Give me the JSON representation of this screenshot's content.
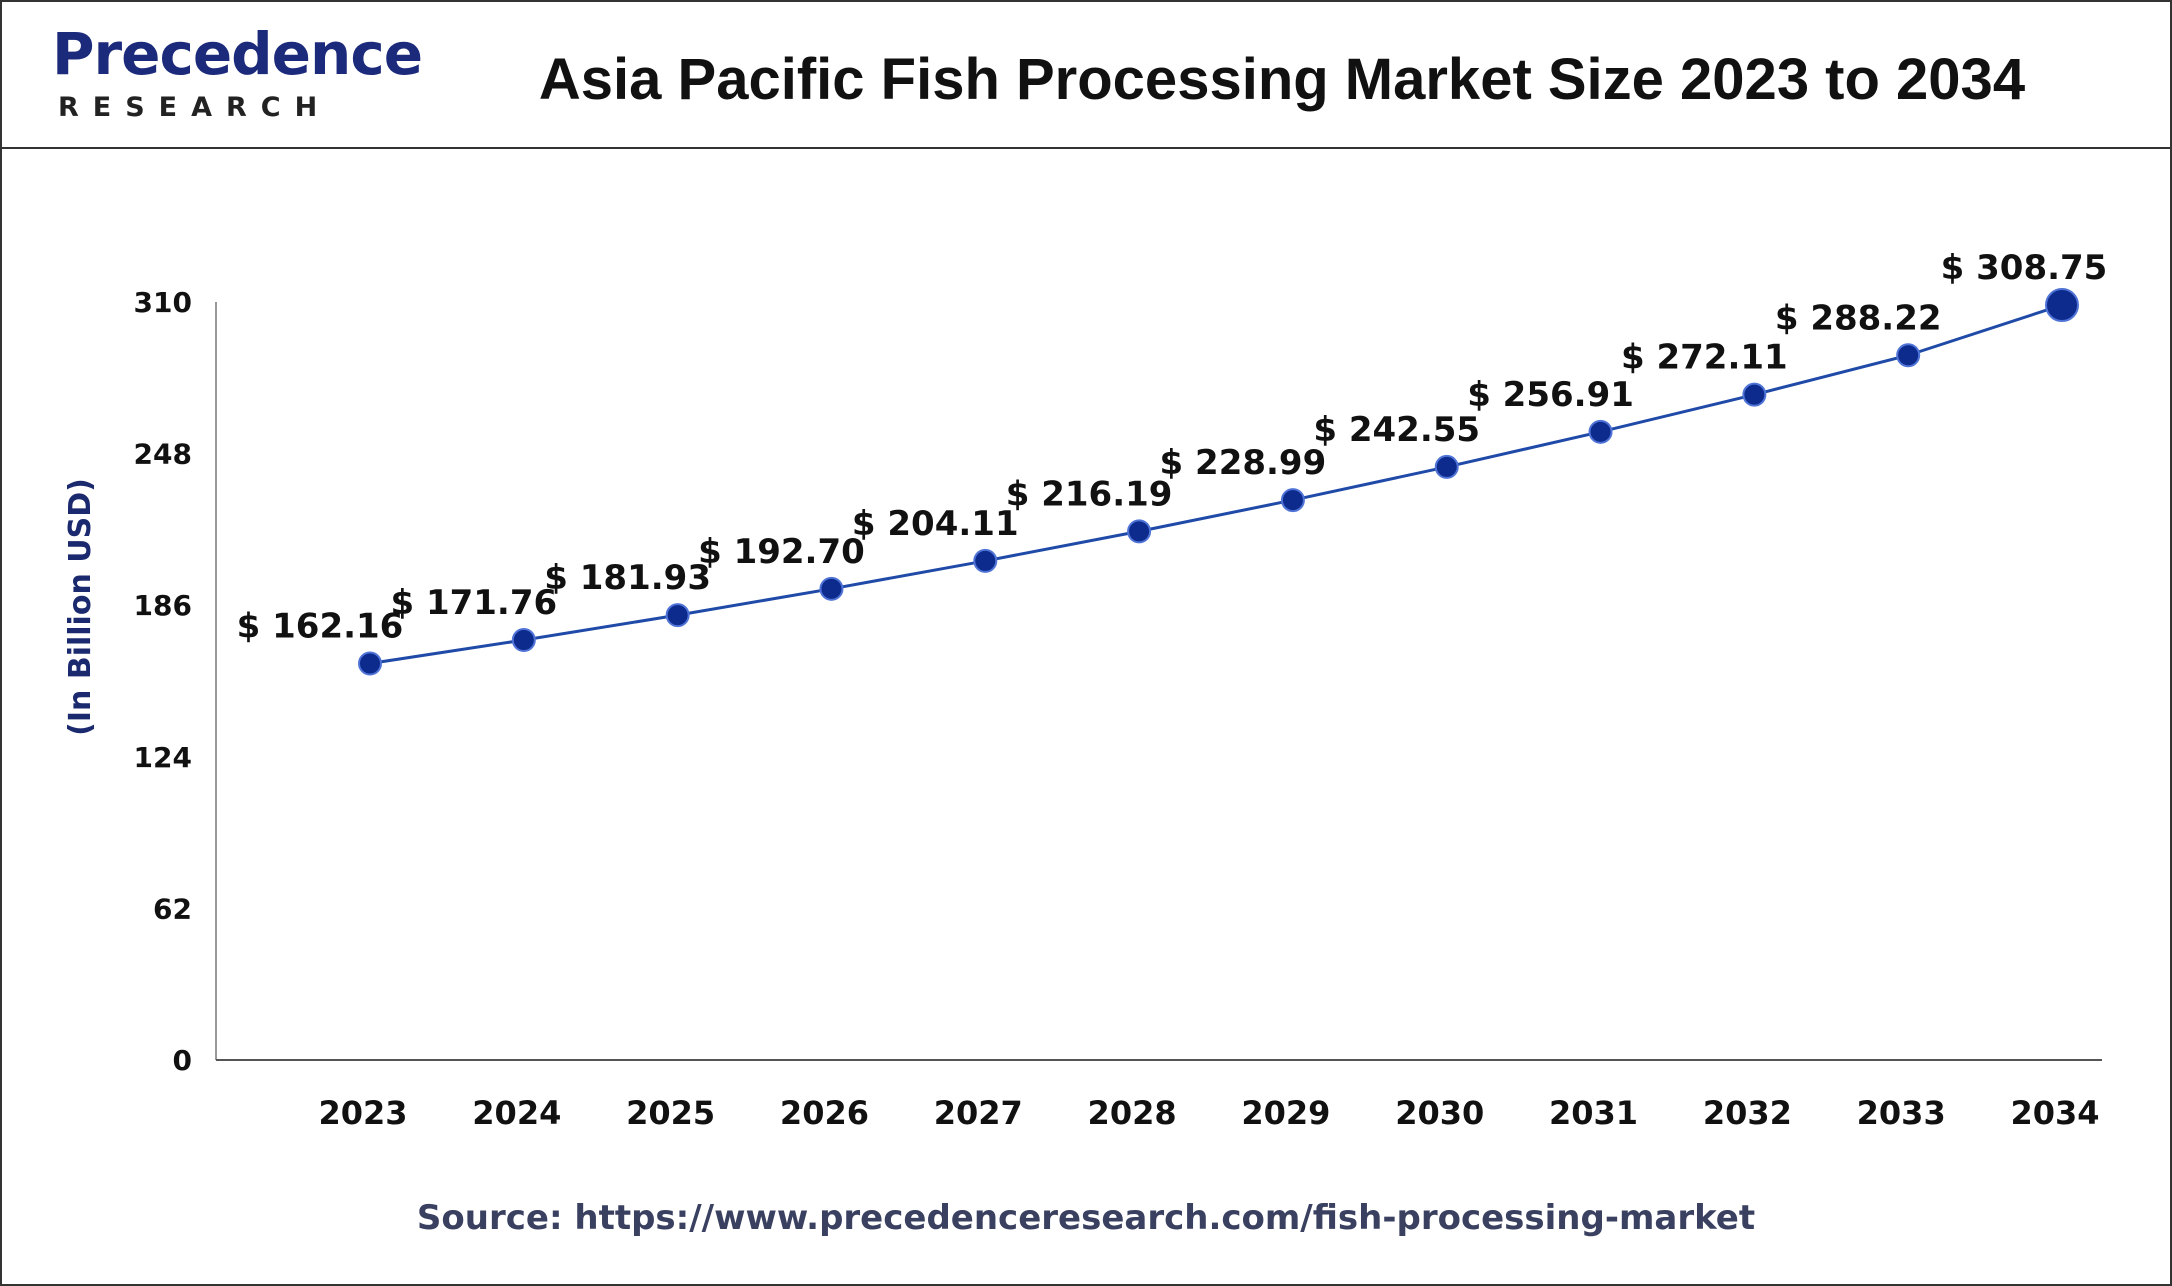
{
  "header": {
    "logo_word": "Precedence",
    "logo_sub": "RESEARCH",
    "title": "Asia Pacific Fish Processing Market Size 2023 to 2034"
  },
  "footer": {
    "source": "Source: https://www.precedenceresearch.com/fish-processing-market"
  },
  "colors": {
    "line": "#1f4aa8",
    "marker": "#0d2b8c",
    "brand": "#1b2a7a"
  },
  "chart_data": {
    "type": "line",
    "title": "Asia Pacific Fish Processing Market Size 2023 to 2034",
    "xlabel": "",
    "ylabel": "(In Billion USD)",
    "categories": [
      "2023",
      "2024",
      "2025",
      "2026",
      "2027",
      "2028",
      "2029",
      "2030",
      "2031",
      "2032",
      "2033",
      "2034"
    ],
    "series": [
      {
        "values": [
          162.16,
          171.76,
          181.93,
          192.7,
          204.11,
          216.19,
          228.99,
          242.55,
          256.91,
          272.11,
          288.22,
          308.75
        ]
      }
    ],
    "data_labels": [
      "$ 162.16",
      "$ 171.76",
      "$ 181.93",
      "$ 192.70",
      "$ 204.11",
      "$ 216.19",
      "$ 228.99",
      "$ 242.55",
      "$ 256.91",
      "$ 272.11",
      "$ 288.22",
      "$ 308.75"
    ],
    "yticks": [
      0,
      62,
      124,
      186,
      248,
      310
    ],
    "ylim": [
      0,
      310
    ],
    "grid": false,
    "legend": "none"
  }
}
